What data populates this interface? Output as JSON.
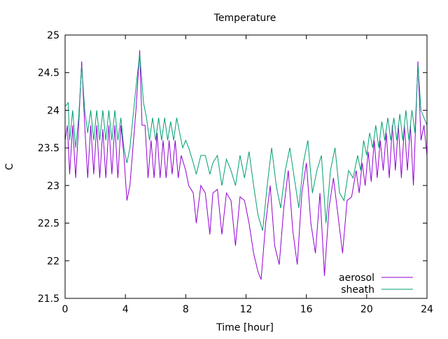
{
  "chart_data": {
    "type": "line",
    "title": "Temperature",
    "xlabel": "Time [hour]",
    "ylabel": "C",
    "xlim": [
      0,
      24
    ],
    "ylim": [
      21.5,
      25
    ],
    "xticks": [
      0,
      4,
      8,
      12,
      16,
      20,
      24
    ],
    "xtick_labels": [
      "0",
      "4",
      "8",
      "12",
      "16",
      "20",
      "24"
    ],
    "yticks": [
      21.5,
      22,
      22.5,
      23,
      23.5,
      24,
      24.5,
      25
    ],
    "ytick_labels": [
      "21.5",
      "22",
      "22.5",
      "23",
      "23.5",
      "24",
      "24.5",
      "25"
    ],
    "grid": false,
    "legend_position": "bottom-right",
    "series": [
      {
        "name": "aerosol",
        "color": "#9400d3",
        "points": [
          [
            0,
            23.6
          ],
          [
            0.15,
            23.8
          ],
          [
            0.3,
            23.15
          ],
          [
            0.5,
            23.8
          ],
          [
            0.7,
            23.1
          ],
          [
            0.9,
            23.8
          ],
          [
            1.1,
            24.65
          ],
          [
            1.3,
            23.8
          ],
          [
            1.5,
            23.1
          ],
          [
            1.7,
            23.8
          ],
          [
            1.9,
            23.15
          ],
          [
            2.1,
            23.8
          ],
          [
            2.3,
            23.1
          ],
          [
            2.5,
            23.75
          ],
          [
            2.7,
            23.1
          ],
          [
            2.9,
            23.8
          ],
          [
            3.1,
            23.15
          ],
          [
            3.3,
            23.8
          ],
          [
            3.5,
            23.1
          ],
          [
            3.7,
            23.8
          ],
          [
            3.9,
            23.4
          ],
          [
            4.1,
            22.8
          ],
          [
            4.3,
            23.0
          ],
          [
            4.5,
            23.5
          ],
          [
            4.7,
            24.0
          ],
          [
            4.95,
            24.8
          ],
          [
            5.1,
            23.8
          ],
          [
            5.3,
            23.8
          ],
          [
            5.5,
            23.1
          ],
          [
            5.7,
            23.6
          ],
          [
            5.9,
            23.1
          ],
          [
            6.1,
            23.7
          ],
          [
            6.3,
            23.1
          ],
          [
            6.5,
            23.6
          ],
          [
            6.7,
            23.1
          ],
          [
            6.9,
            23.6
          ],
          [
            7.1,
            23.15
          ],
          [
            7.3,
            23.6
          ],
          [
            7.5,
            23.1
          ],
          [
            7.7,
            23.4
          ],
          [
            8.0,
            23.2
          ],
          [
            8.2,
            23.0
          ],
          [
            8.5,
            22.9
          ],
          [
            8.7,
            22.5
          ],
          [
            9.0,
            23.0
          ],
          [
            9.3,
            22.9
          ],
          [
            9.6,
            22.35
          ],
          [
            9.8,
            22.9
          ],
          [
            10.1,
            22.95
          ],
          [
            10.4,
            22.35
          ],
          [
            10.7,
            22.9
          ],
          [
            11.0,
            22.8
          ],
          [
            11.3,
            22.2
          ],
          [
            11.6,
            22.85
          ],
          [
            11.9,
            22.8
          ],
          [
            12.2,
            22.5
          ],
          [
            12.5,
            22.1
          ],
          [
            12.8,
            21.85
          ],
          [
            13.0,
            21.75
          ],
          [
            13.3,
            22.5
          ],
          [
            13.6,
            23.0
          ],
          [
            13.9,
            22.2
          ],
          [
            14.2,
            21.95
          ],
          [
            14.5,
            22.7
          ],
          [
            14.8,
            23.2
          ],
          [
            15.1,
            22.4
          ],
          [
            15.4,
            21.95
          ],
          [
            15.7,
            22.9
          ],
          [
            16.0,
            23.3
          ],
          [
            16.3,
            22.5
          ],
          [
            16.6,
            22.1
          ],
          [
            16.9,
            22.9
          ],
          [
            17.2,
            21.8
          ],
          [
            17.5,
            22.7
          ],
          [
            17.8,
            23.1
          ],
          [
            18.1,
            22.6
          ],
          [
            18.4,
            22.1
          ],
          [
            18.7,
            22.8
          ],
          [
            19.0,
            22.85
          ],
          [
            19.3,
            23.2
          ],
          [
            19.5,
            22.9
          ],
          [
            19.7,
            23.3
          ],
          [
            19.9,
            23.0
          ],
          [
            20.1,
            23.45
          ],
          [
            20.3,
            23.05
          ],
          [
            20.5,
            23.6
          ],
          [
            20.7,
            23.1
          ],
          [
            20.9,
            23.6
          ],
          [
            21.1,
            23.2
          ],
          [
            21.3,
            23.7
          ],
          [
            21.5,
            23.1
          ],
          [
            21.7,
            23.8
          ],
          [
            21.9,
            23.2
          ],
          [
            22.1,
            23.8
          ],
          [
            22.3,
            23.1
          ],
          [
            22.5,
            23.8
          ],
          [
            22.7,
            23.2
          ],
          [
            22.9,
            23.8
          ],
          [
            23.1,
            23.0
          ],
          [
            23.4,
            24.65
          ],
          [
            23.6,
            23.6
          ],
          [
            23.8,
            23.8
          ],
          [
            24,
            23.4
          ]
        ]
      },
      {
        "name": "sheath",
        "color": "#009e73",
        "points": [
          [
            0,
            24.05
          ],
          [
            0.2,
            24.1
          ],
          [
            0.3,
            23.6
          ],
          [
            0.5,
            24.0
          ],
          [
            0.7,
            23.5
          ],
          [
            0.9,
            23.9
          ],
          [
            1.1,
            24.6
          ],
          [
            1.3,
            24.0
          ],
          [
            1.5,
            23.7
          ],
          [
            1.7,
            24.0
          ],
          [
            1.9,
            23.6
          ],
          [
            2.1,
            24.0
          ],
          [
            2.3,
            23.6
          ],
          [
            2.5,
            24.0
          ],
          [
            2.7,
            23.6
          ],
          [
            2.9,
            24.0
          ],
          [
            3.1,
            23.6
          ],
          [
            3.3,
            24.0
          ],
          [
            3.5,
            23.6
          ],
          [
            3.7,
            23.9
          ],
          [
            3.9,
            23.5
          ],
          [
            4.1,
            23.3
          ],
          [
            4.3,
            23.5
          ],
          [
            4.5,
            23.9
          ],
          [
            4.7,
            24.3
          ],
          [
            4.95,
            24.75
          ],
          [
            5.2,
            24.1
          ],
          [
            5.4,
            23.9
          ],
          [
            5.6,
            23.6
          ],
          [
            5.8,
            23.9
          ],
          [
            6.0,
            23.6
          ],
          [
            6.2,
            23.9
          ],
          [
            6.4,
            23.6
          ],
          [
            6.6,
            23.9
          ],
          [
            6.8,
            23.6
          ],
          [
            7.0,
            23.85
          ],
          [
            7.2,
            23.6
          ],
          [
            7.4,
            23.9
          ],
          [
            7.6,
            23.7
          ],
          [
            7.8,
            23.5
          ],
          [
            8.0,
            23.6
          ],
          [
            8.2,
            23.5
          ],
          [
            8.5,
            23.3
          ],
          [
            8.7,
            23.15
          ],
          [
            9.0,
            23.4
          ],
          [
            9.3,
            23.4
          ],
          [
            9.6,
            23.15
          ],
          [
            9.8,
            23.3
          ],
          [
            10.1,
            23.4
          ],
          [
            10.4,
            23.0
          ],
          [
            10.7,
            23.35
          ],
          [
            11.0,
            23.2
          ],
          [
            11.3,
            23.0
          ],
          [
            11.6,
            23.4
          ],
          [
            11.9,
            23.1
          ],
          [
            12.2,
            23.45
          ],
          [
            12.5,
            23.0
          ],
          [
            12.8,
            22.6
          ],
          [
            13.1,
            22.4
          ],
          [
            13.4,
            23.0
          ],
          [
            13.7,
            23.5
          ],
          [
            14.0,
            23.0
          ],
          [
            14.3,
            22.7
          ],
          [
            14.6,
            23.2
          ],
          [
            14.9,
            23.5
          ],
          [
            15.2,
            23.1
          ],
          [
            15.5,
            22.7
          ],
          [
            15.8,
            23.3
          ],
          [
            16.1,
            23.6
          ],
          [
            16.4,
            22.9
          ],
          [
            16.7,
            23.2
          ],
          [
            17.0,
            23.4
          ],
          [
            17.3,
            22.5
          ],
          [
            17.6,
            23.2
          ],
          [
            17.9,
            23.5
          ],
          [
            18.2,
            22.9
          ],
          [
            18.5,
            22.8
          ],
          [
            18.8,
            23.2
          ],
          [
            19.1,
            23.1
          ],
          [
            19.4,
            23.4
          ],
          [
            19.6,
            23.2
          ],
          [
            19.8,
            23.6
          ],
          [
            20.0,
            23.4
          ],
          [
            20.2,
            23.7
          ],
          [
            20.4,
            23.5
          ],
          [
            20.6,
            23.8
          ],
          [
            20.8,
            23.5
          ],
          [
            21.0,
            23.85
          ],
          [
            21.2,
            23.6
          ],
          [
            21.4,
            23.9
          ],
          [
            21.6,
            23.6
          ],
          [
            21.8,
            23.9
          ],
          [
            22.0,
            23.6
          ],
          [
            22.2,
            23.95
          ],
          [
            22.4,
            23.6
          ],
          [
            22.6,
            24.0
          ],
          [
            22.8,
            23.6
          ],
          [
            23.0,
            24.0
          ],
          [
            23.2,
            23.7
          ],
          [
            23.4,
            24.6
          ],
          [
            23.6,
            24.0
          ],
          [
            23.8,
            23.9
          ],
          [
            24,
            23.8
          ]
        ]
      }
    ]
  }
}
